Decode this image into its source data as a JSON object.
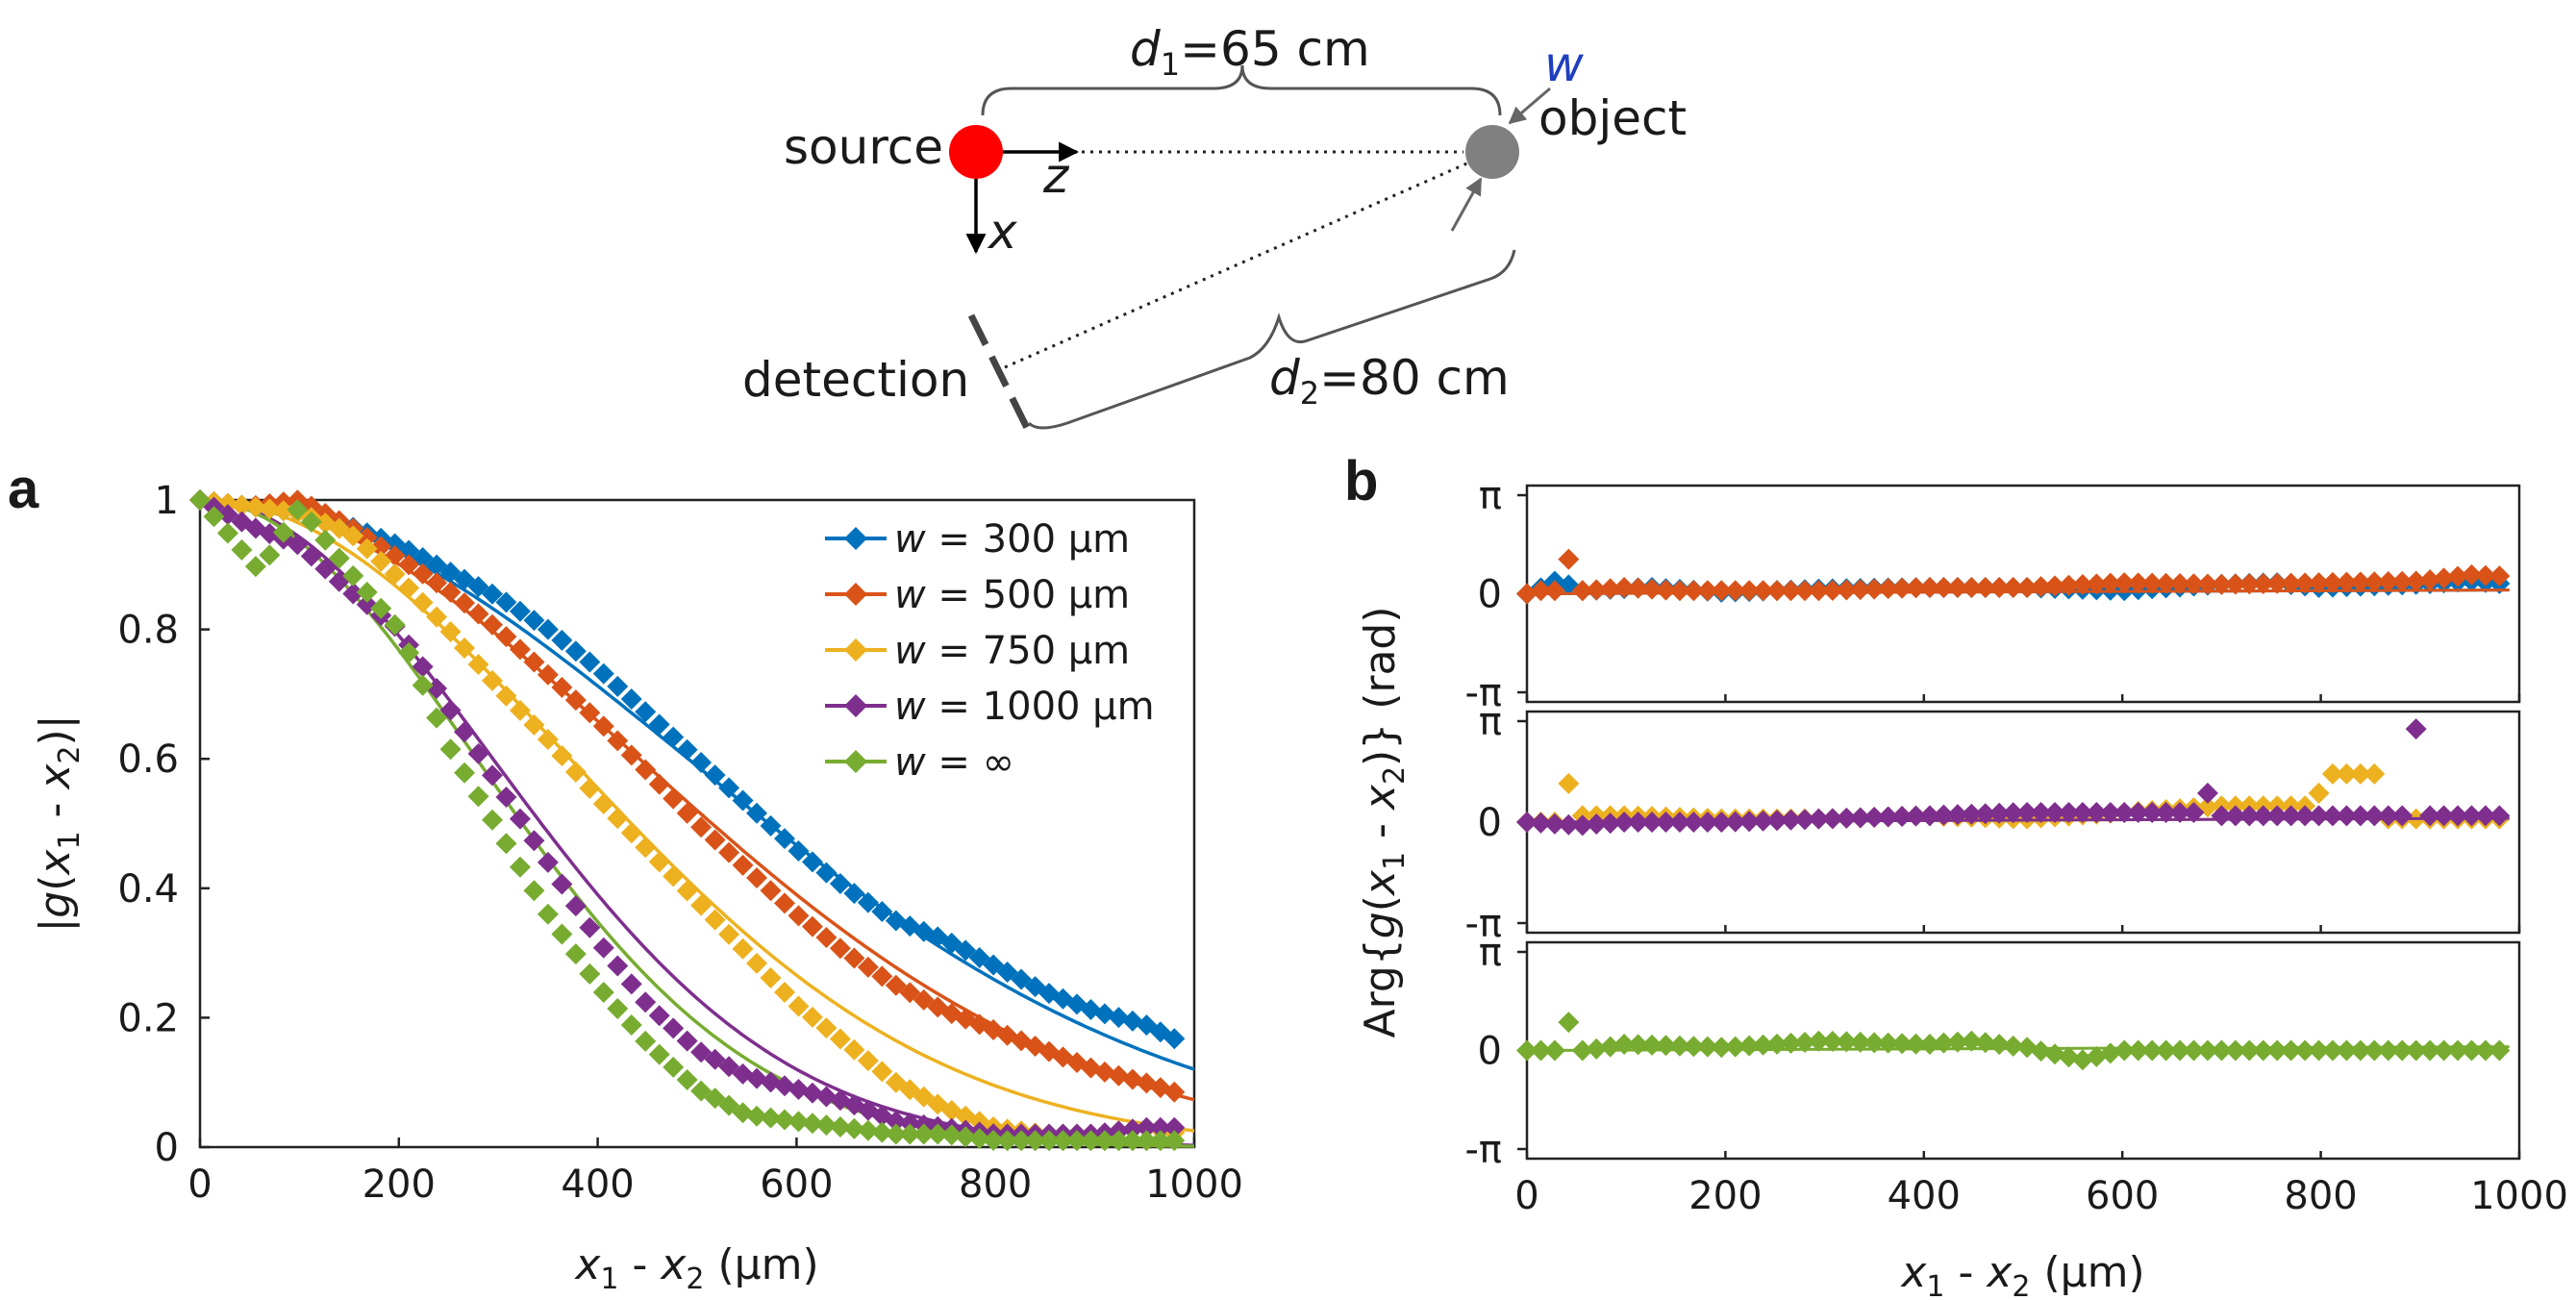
{
  "diagram": {
    "d1_label": "d1=65 cm",
    "d1_var": "d",
    "d1_sub": "1",
    "d1_value": "=65 cm",
    "d2_var": "d",
    "d2_sub": "2",
    "d2_value": "=80 cm",
    "source_label": "source",
    "object_label": "object",
    "detection_label": "detection",
    "z_label": "z",
    "x_label": "x",
    "w_label": "w",
    "source_color": "#ff0000",
    "object_color": "#808080",
    "w_color": "#1f3fbf"
  },
  "panels": {
    "a_label": "a",
    "b_label": "b"
  },
  "chart_data": [
    {
      "id": "a",
      "type": "line",
      "title": "",
      "xlabel": "x1 - x2 (μm)",
      "ylabel": "|g(x1 - x2)|",
      "xlim": [
        0,
        1000
      ],
      "ylim": [
        0,
        1
      ],
      "xticks": [
        0,
        200,
        400,
        600,
        800,
        1000
      ],
      "xtick_labels": [
        "0",
        "200",
        "400",
        "600",
        "800",
        "1000"
      ],
      "yticks": [
        0,
        0.2,
        0.4,
        0.6,
        0.8,
        1
      ],
      "ytick_labels": [
        "0",
        "0.2",
        "0.4",
        "0.6",
        "0.8",
        "1"
      ],
      "legend_position": "top-right",
      "series": [
        {
          "name": "w = 300 μm",
          "legend_var": "w",
          "legend_rest": " = 300 μm",
          "color": "#0072bd",
          "fit_halfwidth": 600,
          "fit_max": 1000
        },
        {
          "name": "w = 500 μm",
          "legend_var": "w",
          "legend_rest": " = 500 μm",
          "color": "#d95319",
          "fit_halfwidth": 540,
          "fit_max": 1000
        },
        {
          "name": "w = 750 μm",
          "legend_var": "w",
          "legend_rest": " = 750 μm",
          "color": "#edb120",
          "fit_halfwidth": 455,
          "fit_max": 1000
        },
        {
          "name": "w = 1000 μm",
          "legend_var": "w",
          "legend_rest": " = 1000 μm",
          "color": "#7e2f8e",
          "fit_halfwidth": 360,
          "fit_max": 1000
        },
        {
          "name": "w = ∞",
          "legend_var": "w",
          "legend_rest": " = ∞",
          "color": "#77ac30",
          "fit_halfwidth": 340,
          "fit_max": 1000
        }
      ],
      "points_note": "measured |g| values sampled at ~14 μm spacing from 0 to 990 μm",
      "point_samples": {
        "w = 300 μm": [
          [
            0,
            1
          ],
          [
            50,
            0.99
          ],
          [
            100,
            0.98
          ],
          [
            150,
            0.96
          ],
          [
            200,
            0.93
          ],
          [
            250,
            0.89
          ],
          [
            300,
            0.85
          ],
          [
            350,
            0.8
          ],
          [
            400,
            0.74
          ],
          [
            450,
            0.67
          ],
          [
            500,
            0.6
          ],
          [
            550,
            0.53
          ],
          [
            600,
            0.46
          ],
          [
            650,
            0.4
          ],
          [
            700,
            0.35
          ],
          [
            750,
            0.32
          ],
          [
            800,
            0.28
          ],
          [
            850,
            0.24
          ],
          [
            900,
            0.21
          ],
          [
            950,
            0.19
          ],
          [
            990,
            0.16
          ]
        ],
        "w = 500 μm": [
          [
            0,
            1
          ],
          [
            50,
            0.99
          ],
          [
            100,
            1.0
          ],
          [
            150,
            0.96
          ],
          [
            200,
            0.91
          ],
          [
            250,
            0.86
          ],
          [
            300,
            0.8
          ],
          [
            350,
            0.73
          ],
          [
            400,
            0.66
          ],
          [
            450,
            0.58
          ],
          [
            500,
            0.5
          ],
          [
            550,
            0.43
          ],
          [
            600,
            0.36
          ],
          [
            650,
            0.3
          ],
          [
            700,
            0.25
          ],
          [
            750,
            0.21
          ],
          [
            800,
            0.18
          ],
          [
            850,
            0.15
          ],
          [
            900,
            0.12
          ],
          [
            950,
            0.1
          ],
          [
            990,
            0.08
          ]
        ],
        "w = 750 μm": [
          [
            0,
            1
          ],
          [
            50,
            0.99
          ],
          [
            100,
            0.98
          ],
          [
            150,
            0.95
          ],
          [
            200,
            0.88
          ],
          [
            250,
            0.8
          ],
          [
            300,
            0.71
          ],
          [
            350,
            0.63
          ],
          [
            400,
            0.54
          ],
          [
            450,
            0.46
          ],
          [
            500,
            0.38
          ],
          [
            550,
            0.3
          ],
          [
            600,
            0.22
          ],
          [
            650,
            0.16
          ],
          [
            700,
            0.1
          ],
          [
            750,
            0.06
          ],
          [
            800,
            0.03
          ],
          [
            850,
            0.02
          ],
          [
            900,
            0.02
          ],
          [
            950,
            0.03
          ],
          [
            990,
            0.02
          ]
        ],
        "w = 1000 μm": [
          [
            0,
            1
          ],
          [
            50,
            0.96
          ],
          [
            100,
            0.93
          ],
          [
            150,
            0.86
          ],
          [
            200,
            0.8
          ],
          [
            250,
            0.68
          ],
          [
            300,
            0.56
          ],
          [
            350,
            0.44
          ],
          [
            400,
            0.32
          ],
          [
            450,
            0.22
          ],
          [
            500,
            0.15
          ],
          [
            550,
            0.11
          ],
          [
            600,
            0.09
          ],
          [
            650,
            0.07
          ],
          [
            700,
            0.04
          ],
          [
            750,
            0.03
          ],
          [
            800,
            0.02
          ],
          [
            850,
            0.02
          ],
          [
            900,
            0.02
          ],
          [
            950,
            0.03
          ],
          [
            990,
            0.03
          ]
        ],
        "w = ∞": [
          [
            0,
            1
          ],
          [
            60,
            0.89
          ],
          [
            100,
            0.99
          ],
          [
            150,
            0.89
          ],
          [
            200,
            0.8
          ],
          [
            250,
            0.62
          ],
          [
            300,
            0.49
          ],
          [
            350,
            0.36
          ],
          [
            400,
            0.25
          ],
          [
            450,
            0.16
          ],
          [
            500,
            0.09
          ],
          [
            550,
            0.05
          ],
          [
            600,
            0.04
          ],
          [
            650,
            0.03
          ],
          [
            700,
            0.02
          ],
          [
            750,
            0.02
          ],
          [
            800,
            0.01
          ],
          [
            850,
            0.01
          ],
          [
            900,
            0.01
          ],
          [
            950,
            0.01
          ],
          [
            990,
            0.01
          ]
        ]
      }
    },
    {
      "id": "b",
      "type": "line",
      "xlabel": "x1 - x2 (μm)",
      "ylabel": "Arg{g(x1 - x2)} (rad)",
      "xlim": [
        0,
        1000
      ],
      "ylim": [
        -3.1416,
        3.1416
      ],
      "xticks": [
        0,
        200,
        400,
        600,
        800,
        1000
      ],
      "xtick_labels": [
        "0",
        "200",
        "400",
        "600",
        "800",
        "1000"
      ],
      "ytick_labels": [
        "π",
        "0",
        "-π"
      ],
      "subplots": [
        {
          "series": [
            {
              "name": "w = 300 μm",
              "color": "#0072bd",
              "points": [
                [
                  0,
                  0
                ],
                [
                  30,
                  0.4
                ],
                [
                  60,
                  0.1
                ],
                [
                  120,
                  0.2
                ],
                [
                  200,
                  0.05
                ],
                [
                  300,
                  0.15
                ],
                [
                  400,
                  0.2
                ],
                [
                  500,
                  0.2
                ],
                [
                  600,
                  0.1
                ],
                [
                  700,
                  0.3
                ],
                [
                  750,
                  0.35
                ],
                [
                  800,
                  0.2
                ],
                [
                  900,
                  0.3
                ],
                [
                  950,
                  0.4
                ],
                [
                  990,
                  0.3
                ]
              ]
            },
            {
              "name": "w = 500 μm",
              "color": "#d95319",
              "points": [
                [
                  0,
                  0
                ],
                [
                  15,
                  0.1
                ],
                [
                  45,
                  1.1
                ],
                [
                  60,
                  0.1
                ],
                [
                  100,
                  0.2
                ],
                [
                  150,
                  0.1
                ],
                [
                  200,
                  0.1
                ],
                [
                  300,
                  0.1
                ],
                [
                  400,
                  0.2
                ],
                [
                  500,
                  0.2
                ],
                [
                  600,
                  0.35
                ],
                [
                  700,
                  0.3
                ],
                [
                  800,
                  0.35
                ],
                [
                  900,
                  0.4
                ],
                [
                  950,
                  0.6
                ],
                [
                  990,
                  0.55
                ]
              ]
            }
          ]
        },
        {
          "series": [
            {
              "name": "w = 750 μm",
              "color": "#edb120",
              "points": [
                [
                  0,
                  0
                ],
                [
                  45,
                  1.2
                ],
                [
                  60,
                  0.2
                ],
                [
                  100,
                  0.2
                ],
                [
                  200,
                  0.1
                ],
                [
                  300,
                  0.1
                ],
                [
                  400,
                  0.2
                ],
                [
                  500,
                  0.1
                ],
                [
                  600,
                  0.3
                ],
                [
                  700,
                  0.5
                ],
                [
                  800,
                  0.9
                ],
                [
                  860,
                  1.5
                ],
                [
                  895,
                  0.1
                ],
                [
                  990,
                  0.1
                ]
              ]
            },
            {
              "name": "w = 1000 μm",
              "color": "#7e2f8e",
              "points": [
                [
                  0,
                  0
                ],
                [
                  50,
                  -0.1
                ],
                [
                  100,
                  0.0
                ],
                [
                  200,
                  0.0
                ],
                [
                  300,
                  0.1
                ],
                [
                  400,
                  0.2
                ],
                [
                  500,
                  0.3
                ],
                [
                  600,
                  0.3
                ],
                [
                  680,
                  0.9
                ],
                [
                  700,
                  0.2
                ],
                [
                  800,
                  0.2
                ],
                [
                  900,
                  2.9
                ],
                [
                  920,
                  0.2
                ],
                [
                  990,
                  0.2
                ]
              ]
            }
          ]
        },
        {
          "series": [
            {
              "name": "w = ∞",
              "color": "#77ac30",
              "points": [
                [
                  0,
                  0
                ],
                [
                  45,
                  0.9
                ],
                [
                  60,
                  0.0
                ],
                [
                  100,
                  0.2
                ],
                [
                  200,
                  0.1
                ],
                [
                  300,
                  0.3
                ],
                [
                  400,
                  0.2
                ],
                [
                  450,
                  0.3
                ],
                [
                  500,
                  0.1
                ],
                [
                  560,
                  -0.3
                ],
                [
                  600,
                  0.0
                ],
                [
                  700,
                  0.0
                ],
                [
                  800,
                  0.0
                ],
                [
                  900,
                  0.0
                ],
                [
                  990,
                  0.0
                ]
              ]
            }
          ]
        }
      ]
    }
  ]
}
